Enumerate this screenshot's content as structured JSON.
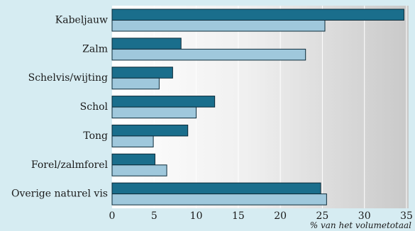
{
  "chart_data": {
    "type": "bar",
    "orientation": "horizontal",
    "categories": [
      "Kabeljauw",
      "Zalm",
      "Schelvis/wijting",
      "Schol",
      "Tong",
      "Forel/zalmforel",
      "Overige naturel vis"
    ],
    "series": [
      {
        "values": [
          34.7,
          8.2,
          7.2,
          12.2,
          9.0,
          5.1,
          24.8
        ],
        "color": "#1a6e8c"
      },
      {
        "values": [
          25.3,
          23.0,
          5.6,
          10.0,
          4.9,
          6.5,
          25.5
        ],
        "color": "#9fc8dc"
      }
    ],
    "xlabel": "% van het volumetotaal",
    "xlim": [
      0,
      35
    ],
    "xticks": [
      0,
      5,
      10,
      15,
      20,
      25,
      30,
      35
    ],
    "grid": true,
    "background": "#d6ecf2"
  }
}
